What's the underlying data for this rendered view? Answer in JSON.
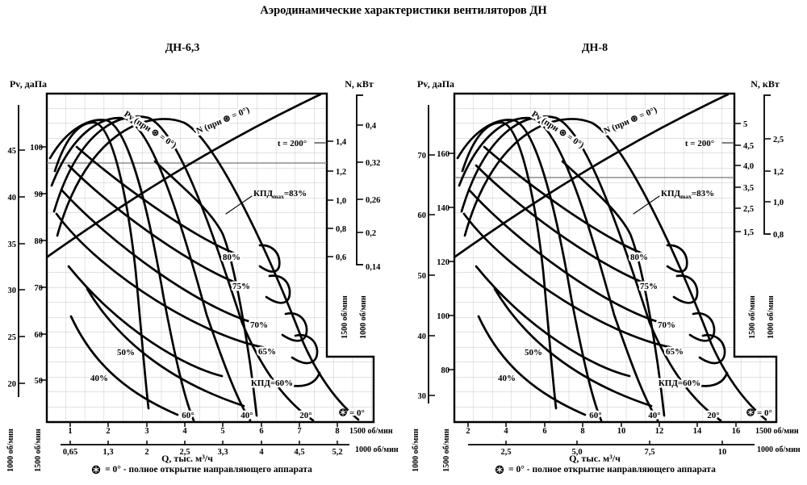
{
  "page": {
    "title": "Аэродинамические характеристики вентиляторов ДН",
    "footer_note": "= 0° - полное открытие направляющего аппарата"
  },
  "charts": [
    {
      "title": "ДН-6,3",
      "pv_axis_label": "Pv, даПа",
      "n_axis_label": "N, кВт",
      "q_axis_label": "Q, тыс. м³/ч",
      "rpm_1500": "1500 об/мин",
      "rpm_1000": "1000 об/мин",
      "x1500": [
        "1",
        "2",
        "3",
        "4",
        "5",
        "6",
        "7",
        "8"
      ],
      "x1000": [
        "0,65",
        "1,3",
        "2",
        "2,5",
        "3,3",
        "4",
        "4,5",
        "5,2"
      ],
      "pv1500": [
        "100",
        "90",
        "80",
        "70",
        "60",
        "50"
      ],
      "pv1000": [
        "45",
        "40",
        "35",
        "30",
        "25",
        "20"
      ],
      "n1500": [
        "1,4",
        "1,2",
        "1,0",
        "0,8",
        "0,6"
      ],
      "n1000": [
        "0,4",
        "0,32",
        "0,26",
        "0,2",
        "0,14"
      ],
      "curve_labels": {
        "pv": "Pv (при ⊛ = 0°)",
        "n": "N (при ⊛ = 0°)",
        "t": "t = 200°",
        "kpd_base": "КПД",
        "kpd_sub": "max",
        "kpd_val": "=83%"
      },
      "efficiency": [
        "80%",
        "75%",
        "70%",
        "65%",
        "КПД=60%",
        "50%",
        "40%"
      ],
      "angles": [
        "60°",
        "40°",
        "20°"
      ],
      "open_angle": "= 0°"
    },
    {
      "title": "ДН-8",
      "pv_axis_label": "Pv, даПа",
      "n_axis_label": "N, кВт",
      "q_axis_label": "Q, тыс. м³/ч",
      "rpm_1500": "1500 об/мин",
      "rpm_1000": "1000 об/мин",
      "x1500": [
        "2",
        "4",
        "6",
        "8",
        "10",
        "12",
        "14",
        "16"
      ],
      "x1000": [
        "2,5",
        "5,0",
        "7,5",
        "10"
      ],
      "pv1500": [
        "160",
        "140",
        "120",
        "100",
        "80"
      ],
      "pv1000": [
        "70",
        "60",
        "50",
        "40",
        "30"
      ],
      "n1500": [
        "5",
        "4,5",
        "4,0",
        "3,5",
        "2,5",
        "1,5"
      ],
      "n1000": [
        "2,5",
        "1,2",
        "1,0",
        "0,8"
      ],
      "curve_labels": {
        "pv": "Pv (при ⊛ = 0°)",
        "n": "N (при ⊛ = 0°)",
        "t": "t = 200°",
        "kpd_base": "КПД",
        "kpd_sub": "max",
        "kpd_val": "=83%"
      },
      "efficiency": [
        "80%",
        "75%",
        "70%",
        "65%",
        "КПД=60%",
        "50%",
        "40%"
      ],
      "angles": [
        "60°",
        "40°",
        "20°"
      ],
      "open_angle": "= 0°"
    }
  ],
  "chart_data": [
    {
      "type": "line",
      "title": "ДН-6,3",
      "x": {
        "label": "Q, тыс. м³/ч",
        "scale_1500_rpm": {
          "label": "1500 об/мин",
          "ticks": [
            1,
            2,
            3,
            4,
            5,
            6,
            7,
            8
          ]
        },
        "scale_1000_rpm": {
          "label": "1000 об/мин",
          "ticks": [
            0.65,
            1.3,
            2,
            2.5,
            3.3,
            4,
            4.5,
            5.2
          ]
        }
      },
      "y_pressure": {
        "label": "Pv, даПа",
        "scale_1500_rpm": {
          "ticks": [
            50,
            60,
            70,
            80,
            90,
            100
          ]
        },
        "scale_1000_rpm": {
          "ticks": [
            20,
            25,
            30,
            35,
            40,
            45
          ]
        }
      },
      "y_power": {
        "label": "N, кВт",
        "scale_1500_rpm": {
          "ticks": [
            0.6,
            0.8,
            1.0,
            1.2,
            1.4
          ]
        },
        "scale_1000_rpm": {
          "ticks": [
            0.14,
            0.2,
            0.26,
            0.32,
            0.4
          ]
        }
      },
      "series": [
        {
          "name": "Pv (при ⊛ = 0°)",
          "description": "pressure curve, guide vanes fully open, 1500 rpm scale, estimated",
          "x": [
            1.2,
            2,
            3,
            4,
            5,
            6,
            7,
            7.8
          ],
          "y": [
            93,
            101,
            105,
            102,
            93,
            80,
            63,
            47
          ]
        },
        {
          "name": "N (при ⊛ = 0°)",
          "description": "power curve, guide vanes fully open, 1500 rpm scale, estimated",
          "x": [
            2,
            3,
            4,
            5,
            6
          ],
          "y": [
            0.86,
            1.02,
            1.18,
            1.3,
            1.42
          ]
        },
        {
          "name": "КПДmax=83%",
          "description": "maximum efficiency locus crossing the curve family"
        }
      ],
      "efficiency_contours_percent": [
        80,
        75,
        70,
        65,
        60,
        50,
        40
      ],
      "guide_vane_angles_deg": [
        60,
        40,
        20,
        0
      ],
      "temperature_note": "t = 200°",
      "grid": true,
      "legend": "labels placed directly on curves"
    },
    {
      "type": "line",
      "title": "ДН-8",
      "x": {
        "label": "Q, тыс. м³/ч",
        "scale_1500_rpm": {
          "label": "1500 об/мин",
          "ticks": [
            2,
            4,
            6,
            8,
            10,
            12,
            14,
            16
          ]
        },
        "scale_1000_rpm": {
          "label": "1000 об/мин",
          "ticks": [
            2.5,
            5.0,
            7.5,
            10
          ]
        }
      },
      "y_pressure": {
        "label": "Pv, даПа",
        "scale_1500_rpm": {
          "ticks": [
            80,
            100,
            120,
            140,
            160
          ]
        },
        "scale_1000_rpm": {
          "ticks": [
            30,
            40,
            50,
            60,
            70
          ]
        }
      },
      "y_power": {
        "label": "N, кВт",
        "scale_1500_rpm": {
          "ticks": [
            1.5,
            2.5,
            3.5,
            4.0,
            4.5,
            5
          ]
        },
        "scale_1000_rpm": {
          "ticks": [
            0.8,
            1.0,
            1.2,
            2.5
          ]
        }
      },
      "series": [
        {
          "name": "Pv (при ⊛ = 0°)",
          "description": "pressure curve, guide vanes fully open, 1500 rpm scale, estimated",
          "x": [
            2.5,
            4,
            6,
            8,
            10,
            12,
            14,
            15.5
          ],
          "y": [
            148,
            164,
            172,
            166,
            148,
            126,
            100,
            75
          ]
        },
        {
          "name": "N (при ⊛ = 0°)",
          "description": "power curve, guide vanes fully open, 1500 rpm scale, estimated",
          "x": [
            4,
            6,
            8,
            10,
            12,
            14
          ],
          "y": [
            2.5,
            3.2,
            4.0,
            4.5,
            4.9,
            5.1
          ]
        },
        {
          "name": "КПДmax=83%",
          "description": "maximum efficiency locus crossing the curve family"
        }
      ],
      "efficiency_contours_percent": [
        80,
        75,
        70,
        65,
        60,
        50,
        40
      ],
      "guide_vane_angles_deg": [
        60,
        40,
        20,
        0
      ],
      "temperature_note": "t = 200°",
      "grid": true,
      "legend": "labels placed directly on curves"
    }
  ]
}
